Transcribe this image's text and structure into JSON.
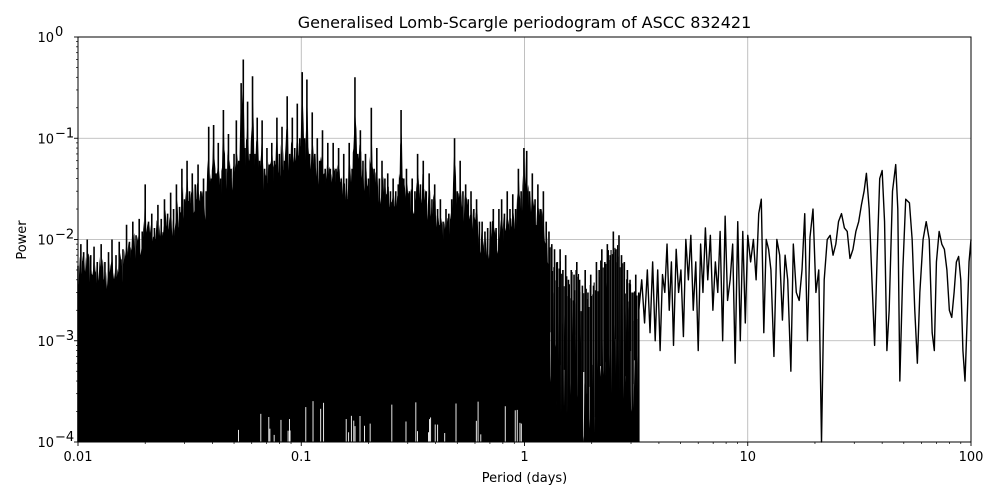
{
  "chart_data": {
    "type": "line",
    "title": "Generalised Lomb-Scargle periodogram of ASCC 832421",
    "xlabel": "Period (days)",
    "ylabel": "Power",
    "xscale": "log",
    "yscale": "log",
    "xlim": [
      0.01,
      100
    ],
    "ylim": [
      0.0001,
      1
    ],
    "grid": true,
    "legend": null,
    "x_ticks": [
      {
        "value": 0.01,
        "label": "0.01"
      },
      {
        "value": 0.1,
        "label": "0.1"
      },
      {
        "value": 1,
        "label": "1"
      },
      {
        "value": 10,
        "label": "10"
      },
      {
        "value": 100,
        "label": "100"
      }
    ],
    "y_ticks": [
      {
        "value": 1,
        "base": "10",
        "exp": "0"
      },
      {
        "value": 0.1,
        "base": "10",
        "exp": "−1"
      },
      {
        "value": 0.01,
        "base": "10",
        "exp": "−2"
      },
      {
        "value": 0.001,
        "base": "10",
        "exp": "−3"
      },
      {
        "value": 0.0001,
        "base": "10",
        "exp": "−4"
      }
    ],
    "line_color": "#000000",
    "grid_color": "#b0b0b0",
    "dense_envelope": {
      "description": "Upper envelope of densely oscillating periodogram (P < ~3 d); curve fills down to 1e-4",
      "points": [
        [
          0.01,
          0.0055
        ],
        [
          0.0103,
          0.009
        ],
        [
          0.0106,
          0.0075
        ],
        [
          0.011,
          0.01
        ],
        [
          0.0114,
          0.007
        ],
        [
          0.0118,
          0.0085
        ],
        [
          0.0122,
          0.006
        ],
        [
          0.0127,
          0.009
        ],
        [
          0.0132,
          0.006
        ],
        [
          0.0137,
          0.0075
        ],
        [
          0.0142,
          0.01
        ],
        [
          0.0148,
          0.007
        ],
        [
          0.0153,
          0.0095
        ],
        [
          0.0159,
          0.008
        ],
        [
          0.0165,
          0.014
        ],
        [
          0.017,
          0.0095
        ],
        [
          0.0176,
          0.015
        ],
        [
          0.0182,
          0.011
        ],
        [
          0.0188,
          0.016
        ],
        [
          0.0194,
          0.012
        ],
        [
          0.02,
          0.035
        ],
        [
          0.0207,
          0.015
        ],
        [
          0.0214,
          0.018
        ],
        [
          0.022,
          0.013
        ],
        [
          0.0228,
          0.022
        ],
        [
          0.0236,
          0.016
        ],
        [
          0.0244,
          0.025
        ],
        [
          0.0252,
          0.018
        ],
        [
          0.026,
          0.029
        ],
        [
          0.0268,
          0.02
        ],
        [
          0.0276,
          0.035
        ],
        [
          0.0285,
          0.021
        ],
        [
          0.0292,
          0.05
        ],
        [
          0.03,
          0.025
        ],
        [
          0.0308,
          0.06
        ],
        [
          0.0316,
          0.03
        ],
        [
          0.0325,
          0.045
        ],
        [
          0.0335,
          0.035
        ],
        [
          0.0345,
          0.055
        ],
        [
          0.0355,
          0.03
        ],
        [
          0.0365,
          0.04
        ],
        [
          0.0375,
          0.03
        ],
        [
          0.0385,
          0.13
        ],
        [
          0.0395,
          0.04
        ],
        [
          0.0405,
          0.135
        ],
        [
          0.0415,
          0.045
        ],
        [
          0.0425,
          0.09
        ],
        [
          0.0435,
          0.04
        ],
        [
          0.0448,
          0.19
        ],
        [
          0.046,
          0.05
        ],
        [
          0.0472,
          0.11
        ],
        [
          0.0485,
          0.05
        ],
        [
          0.05,
          0.07
        ],
        [
          0.0512,
          0.15
        ],
        [
          0.0525,
          0.06
        ],
        [
          0.0538,
          0.35
        ],
        [
          0.055,
          0.6
        ],
        [
          0.056,
          0.08
        ],
        [
          0.0575,
          0.23
        ],
        [
          0.059,
          0.07
        ],
        [
          0.0605,
          0.41
        ],
        [
          0.062,
          0.07
        ],
        [
          0.0635,
          0.16
        ],
        [
          0.065,
          0.06
        ],
        [
          0.0668,
          0.15
        ],
        [
          0.0685,
          0.05
        ],
        [
          0.0702,
          0.08
        ],
        [
          0.072,
          0.055
        ],
        [
          0.0738,
          0.09
        ],
        [
          0.0758,
          0.06
        ],
        [
          0.0778,
          0.16
        ],
        [
          0.0798,
          0.07
        ],
        [
          0.082,
          0.13
        ],
        [
          0.0842,
          0.06
        ],
        [
          0.0865,
          0.26
        ],
        [
          0.0888,
          0.07
        ],
        [
          0.0912,
          0.16
        ],
        [
          0.0935,
          0.08
        ],
        [
          0.096,
          0.22
        ],
        [
          0.0985,
          0.1
        ],
        [
          0.101,
          0.45
        ],
        [
          0.1035,
          0.1
        ],
        [
          0.106,
          0.38
        ],
        [
          0.109,
          0.07
        ],
        [
          0.112,
          0.18
        ],
        [
          0.115,
          0.07
        ],
        [
          0.118,
          0.1
        ],
        [
          0.121,
          0.06
        ],
        [
          0.1245,
          0.12
        ],
        [
          0.128,
          0.05
        ],
        [
          0.1315,
          0.09
        ],
        [
          0.135,
          0.05
        ],
        [
          0.139,
          0.09
        ],
        [
          0.143,
          0.05
        ],
        [
          0.147,
          0.08
        ],
        [
          0.151,
          0.04
        ],
        [
          0.155,
          0.07
        ],
        [
          0.1595,
          0.04
        ],
        [
          0.164,
          0.09
        ],
        [
          0.169,
          0.05
        ],
        [
          0.174,
          0.4
        ],
        [
          0.179,
          0.07
        ],
        [
          0.184,
          0.12
        ],
        [
          0.189,
          0.06
        ],
        [
          0.194,
          0.07
        ],
        [
          0.2,
          0.04
        ],
        [
          0.206,
          0.2
        ],
        [
          0.212,
          0.05
        ],
        [
          0.218,
          0.08
        ],
        [
          0.224,
          0.04
        ],
        [
          0.23,
          0.06
        ],
        [
          0.237,
          0.04
        ],
        [
          0.244,
          0.045
        ],
        [
          0.251,
          0.03
        ],
        [
          0.258,
          0.04
        ],
        [
          0.265,
          0.03
        ],
        [
          0.272,
          0.035
        ],
        [
          0.28,
          0.19
        ],
        [
          0.288,
          0.04
        ],
        [
          0.296,
          0.05
        ],
        [
          0.305,
          0.03
        ],
        [
          0.314,
          0.04
        ],
        [
          0.323,
          0.03
        ],
        [
          0.332,
          0.07
        ],
        [
          0.342,
          0.035
        ],
        [
          0.352,
          0.06
        ],
        [
          0.363,
          0.03
        ],
        [
          0.374,
          0.045
        ],
        [
          0.385,
          0.025
        ],
        [
          0.396,
          0.035
        ],
        [
          0.408,
          0.02
        ],
        [
          0.42,
          0.025
        ],
        [
          0.432,
          0.015
        ],
        [
          0.445,
          0.02
        ],
        [
          0.458,
          0.018
        ],
        [
          0.472,
          0.025
        ],
        [
          0.486,
          0.1
        ],
        [
          0.5,
          0.03
        ],
        [
          0.515,
          0.06
        ],
        [
          0.53,
          0.03
        ],
        [
          0.545,
          0.035
        ],
        [
          0.56,
          0.025
        ],
        [
          0.576,
          0.03
        ],
        [
          0.593,
          0.02
        ],
        [
          0.61,
          0.025
        ],
        [
          0.628,
          0.015
        ],
        [
          0.646,
          0.015
        ],
        [
          0.665,
          0.012
        ],
        [
          0.684,
          0.013
        ],
        [
          0.704,
          0.015
        ],
        [
          0.725,
          0.02
        ],
        [
          0.746,
          0.013
        ],
        [
          0.768,
          0.02
        ],
        [
          0.79,
          0.025
        ],
        [
          0.813,
          0.018
        ],
        [
          0.837,
          0.03
        ],
        [
          0.861,
          0.02
        ],
        [
          0.886,
          0.028
        ],
        [
          0.912,
          0.02
        ],
        [
          0.939,
          0.05
        ],
        [
          0.966,
          0.03
        ],
        [
          0.994,
          0.08
        ],
        [
          1.023,
          0.075
        ],
        [
          1.053,
          0.03
        ],
        [
          1.084,
          0.045
        ],
        [
          1.115,
          0.025
        ],
        [
          1.148,
          0.035
        ],
        [
          1.181,
          0.02
        ],
        [
          1.215,
          0.03
        ],
        [
          1.251,
          0.015
        ],
        [
          1.287,
          0.012
        ],
        [
          1.325,
          0.009
        ],
        [
          1.363,
          0.008
        ],
        [
          1.403,
          0.006
        ],
        [
          1.444,
          0.008
        ],
        [
          1.486,
          0.005
        ],
        [
          1.529,
          0.007
        ],
        [
          1.574,
          0.004
        ],
        [
          1.62,
          0.005
        ],
        [
          1.667,
          0.0045
        ],
        [
          1.715,
          0.006
        ],
        [
          1.765,
          0.004
        ],
        [
          1.817,
          0.0035
        ],
        [
          1.87,
          0.005
        ],
        [
          1.924,
          0.003
        ],
        [
          1.98,
          0.0045
        ],
        [
          2.038,
          0.0035
        ],
        [
          2.1,
          0.006
        ],
        [
          2.16,
          0.005
        ],
        [
          2.22,
          0.008
        ],
        [
          2.29,
          0.006
        ],
        [
          2.35,
          0.009
        ],
        [
          2.42,
          0.007
        ],
        [
          2.5,
          0.012
        ],
        [
          2.57,
          0.008
        ],
        [
          2.65,
          0.011
        ],
        [
          2.72,
          0.007
        ],
        [
          2.8,
          0.006
        ],
        [
          2.89,
          0.005
        ],
        [
          2.97,
          0.004
        ],
        [
          3.06,
          0.003
        ],
        [
          3.15,
          0.0045
        ],
        [
          3.25,
          0.003
        ]
      ]
    },
    "dense_floor": {
      "description": "Lower boundary of oscillation band — deep dips to 1e-4 throughout, lifted band near 1-3 d",
      "points": [
        [
          0.01,
          0.0001
        ],
        [
          1.0,
          0.0001
        ],
        [
          1.2,
          0.0003
        ],
        [
          1.4,
          0.0001
        ],
        [
          1.6,
          0.0004
        ],
        [
          2.0,
          0.0001
        ],
        [
          2.5,
          0.0005
        ],
        [
          3.25,
          0.0002
        ]
      ]
    },
    "smooth_curve": {
      "description": "Long-period smooth oscillating tail (P > ~3 d)",
      "points": [
        [
          3.25,
          0.002
        ],
        [
          3.35,
          0.004
        ],
        [
          3.45,
          0.0015
        ],
        [
          3.55,
          0.005
        ],
        [
          3.65,
          0.0012
        ],
        [
          3.75,
          0.006
        ],
        [
          3.85,
          0.001
        ],
        [
          3.95,
          0.005
        ],
        [
          4.05,
          0.0008
        ],
        [
          4.15,
          0.0045
        ],
        [
          4.25,
          0.003
        ],
        [
          4.35,
          0.009
        ],
        [
          4.45,
          0.002
        ],
        [
          4.55,
          0.006
        ],
        [
          4.65,
          0.0009
        ],
        [
          4.78,
          0.008
        ],
        [
          4.9,
          0.003
        ],
        [
          5.02,
          0.005
        ],
        [
          5.15,
          0.0011
        ],
        [
          5.28,
          0.01
        ],
        [
          5.42,
          0.004
        ],
        [
          5.56,
          0.011
        ],
        [
          5.7,
          0.002
        ],
        [
          5.85,
          0.006
        ],
        [
          6.0,
          0.0008
        ],
        [
          6.15,
          0.009
        ],
        [
          6.3,
          0.003
        ],
        [
          6.46,
          0.013
        ],
        [
          6.62,
          0.004
        ],
        [
          6.8,
          0.011
        ],
        [
          6.98,
          0.002
        ],
        [
          7.16,
          0.006
        ],
        [
          7.34,
          0.003
        ],
        [
          7.52,
          0.012
        ],
        [
          7.72,
          0.001
        ],
        [
          7.92,
          0.017
        ],
        [
          8.12,
          0.0025
        ],
        [
          8.34,
          0.004
        ],
        [
          8.56,
          0.009
        ],
        [
          8.78,
          0.0006
        ],
        [
          9.02,
          0.015
        ],
        [
          9.26,
          0.001
        ],
        [
          9.5,
          0.012
        ],
        [
          9.75,
          0.0015
        ],
        [
          10.0,
          0.011
        ],
        [
          10.3,
          0.006
        ],
        [
          10.6,
          0.01
        ],
        [
          10.9,
          0.004
        ],
        [
          11.2,
          0.018
        ],
        [
          11.5,
          0.025
        ],
        [
          11.8,
          0.0012
        ],
        [
          12.1,
          0.01
        ],
        [
          12.4,
          0.008
        ],
        [
          12.7,
          0.005
        ],
        [
          13.1,
          0.0007
        ],
        [
          13.5,
          0.01
        ],
        [
          13.9,
          0.007
        ],
        [
          14.3,
          0.0016
        ],
        [
          14.7,
          0.007
        ],
        [
          15.1,
          0.004
        ],
        [
          15.6,
          0.0005
        ],
        [
          16.0,
          0.009
        ],
        [
          16.5,
          0.003
        ],
        [
          17.0,
          0.0025
        ],
        [
          17.5,
          0.005
        ],
        [
          18.0,
          0.018
        ],
        [
          18.5,
          0.001
        ],
        [
          19.0,
          0.0105
        ],
        [
          19.6,
          0.02
        ],
        [
          20.2,
          0.003
        ],
        [
          20.8,
          0.005
        ],
        [
          21.4,
          0.0001
        ],
        [
          22.0,
          0.004
        ],
        [
          22.7,
          0.01
        ],
        [
          23.4,
          0.011
        ],
        [
          24.1,
          0.007
        ],
        [
          24.8,
          0.009
        ],
        [
          25.5,
          0.015
        ],
        [
          26.3,
          0.018
        ],
        [
          27.1,
          0.013
        ],
        [
          27.9,
          0.012
        ],
        [
          28.7,
          0.0065
        ],
        [
          29.6,
          0.008
        ],
        [
          30.5,
          0.012
        ],
        [
          31.4,
          0.015
        ],
        [
          32.3,
          0.022
        ],
        [
          33.2,
          0.03
        ],
        [
          34.0,
          0.045
        ],
        [
          35.0,
          0.02
        ],
        [
          36.0,
          0.004
        ],
        [
          37.0,
          0.0009
        ],
        [
          38.0,
          0.007
        ],
        [
          39.0,
          0.04
        ],
        [
          40.0,
          0.048
        ],
        [
          41.0,
          0.015
        ],
        [
          42.0,
          0.0008
        ],
        [
          43.0,
          0.002
        ],
        [
          44.5,
          0.03
        ],
        [
          46.0,
          0.055
        ],
        [
          47.0,
          0.02
        ],
        [
          48.0,
          0.0004
        ],
        [
          49.5,
          0.005
        ],
        [
          51.0,
          0.025
        ],
        [
          53.0,
          0.023
        ],
        [
          54.5,
          0.01
        ],
        [
          56.0,
          0.002
        ],
        [
          57.5,
          0.0006
        ],
        [
          59.0,
          0.003
        ],
        [
          61.0,
          0.01
        ],
        [
          63.0,
          0.015
        ],
        [
          65.0,
          0.01
        ],
        [
          67.0,
          0.0012
        ],
        [
          68.5,
          0.0008
        ],
        [
          70.0,
          0.006
        ],
        [
          72.0,
          0.012
        ],
        [
          74.0,
          0.009
        ],
        [
          76.0,
          0.008
        ],
        [
          78.0,
          0.005
        ],
        [
          80.0,
          0.002
        ],
        [
          82.0,
          0.0017
        ],
        [
          84.0,
          0.003
        ],
        [
          86.0,
          0.006
        ],
        [
          88.0,
          0.0068
        ],
        [
          90.0,
          0.004
        ],
        [
          92.0,
          0.0008
        ],
        [
          94.0,
          0.0004
        ],
        [
          96.0,
          0.0015
        ],
        [
          98.0,
          0.006
        ],
        [
          100.0,
          0.01
        ]
      ]
    }
  }
}
